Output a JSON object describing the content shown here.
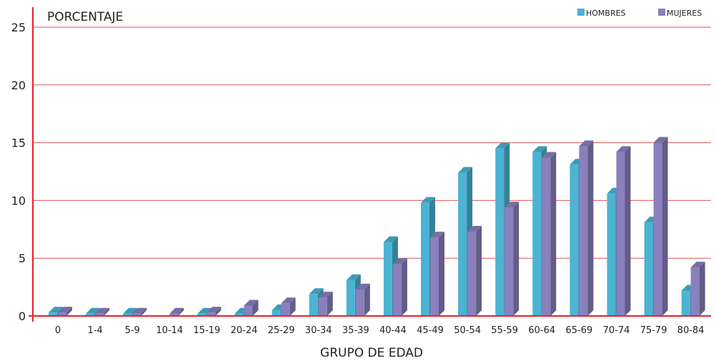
{
  "chart_data": {
    "type": "bar",
    "title": "",
    "ylabel": "PORCENTAJE",
    "xlabel": "GRUPO DE EDAD",
    "ylim": [
      0,
      25
    ],
    "yticks": [
      0,
      5,
      10,
      15,
      20,
      25
    ],
    "grid": true,
    "legend_position": "top-right",
    "categories": [
      "0",
      "1-4",
      "5-9",
      "10-14",
      "15-19",
      "20-24",
      "25-29",
      "30-34",
      "35-39",
      "40-44",
      "45-49",
      "50-54",
      "55-59",
      "60-64",
      "65-69",
      "70-74",
      "75-79",
      "80-84"
    ],
    "series": [
      {
        "name": "HOMBRES",
        "color": "#4bb3d3",
        "values": [
          0.3,
          0.2,
          0.2,
          0,
          0.2,
          0.2,
          0.5,
          1.9,
          3.1,
          6.4,
          9.8,
          12.4,
          14.5,
          14.2,
          13.1,
          10.6,
          8.1,
          2.2
        ]
      },
      {
        "name": "MUJERES",
        "color": "#8a80bd",
        "values": [
          0.3,
          0.2,
          0.2,
          0.2,
          0.3,
          0.9,
          1.1,
          1.6,
          2.3,
          4.5,
          6.8,
          7.3,
          9.4,
          13.7,
          14.7,
          14.2,
          15.0,
          4.2
        ]
      }
    ]
  },
  "colors": {
    "axis": "#e8212b",
    "grid": "#e05252",
    "text": "#222222"
  }
}
